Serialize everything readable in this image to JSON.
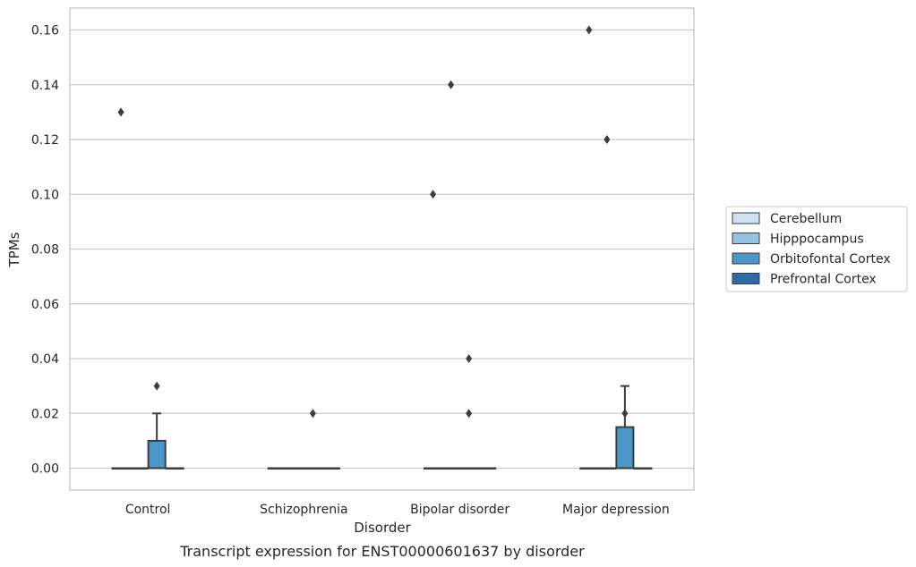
{
  "chart_data": {
    "type": "box",
    "title": "",
    "caption": "Transcript expression for ENST00000601637 by disorder",
    "xlabel": "Disorder",
    "ylabel": "TPMs",
    "ylim": [
      -0.008,
      0.168
    ],
    "yticks": [
      0.0,
      0.02,
      0.04,
      0.06,
      0.08,
      0.1,
      0.12,
      0.14,
      0.16
    ],
    "ytick_labels": [
      "0.00",
      "0.02",
      "0.04",
      "0.06",
      "0.08",
      "0.10",
      "0.12",
      "0.14",
      "0.16"
    ],
    "grid": "horizontal",
    "legend_placement": "right",
    "categories": [
      "Control",
      "Schizophrenia",
      "Bipolar disorder",
      "Major depression"
    ],
    "series": [
      {
        "name": "Cerebellum",
        "color": "#d0e1f2",
        "boxes": [
          {
            "q1": 0,
            "median": 0,
            "q3": 0,
            "whisker_low": 0,
            "whisker_high": 0,
            "outliers": [
              0.13
            ]
          },
          {
            "q1": 0,
            "median": 0,
            "q3": 0,
            "whisker_low": 0,
            "whisker_high": 0,
            "outliers": []
          },
          {
            "q1": 0,
            "median": 0,
            "q3": 0,
            "whisker_low": 0,
            "whisker_high": 0,
            "outliers": [
              0.1
            ]
          },
          {
            "q1": 0,
            "median": 0,
            "q3": 0,
            "whisker_low": 0,
            "whisker_high": 0,
            "outliers": [
              0.16
            ]
          }
        ]
      },
      {
        "name": "Hipppocampus",
        "color": "#94c4df",
        "boxes": [
          {
            "q1": 0,
            "median": 0,
            "q3": 0,
            "whisker_low": 0,
            "whisker_high": 0,
            "outliers": []
          },
          {
            "q1": 0,
            "median": 0,
            "q3": 0,
            "whisker_low": 0,
            "whisker_high": 0,
            "outliers": []
          },
          {
            "q1": 0,
            "median": 0,
            "q3": 0,
            "whisker_low": 0,
            "whisker_high": 0,
            "outliers": [
              0.14
            ]
          },
          {
            "q1": 0,
            "median": 0,
            "q3": 0,
            "whisker_low": 0,
            "whisker_high": 0,
            "outliers": [
              0.12
            ]
          }
        ]
      },
      {
        "name": "Orbitofontal Cortex",
        "color": "#4a98c9",
        "boxes": [
          {
            "q1": 0,
            "median": 0,
            "q3": 0.01,
            "whisker_low": 0,
            "whisker_high": 0.02,
            "outliers": [
              0.03
            ]
          },
          {
            "q1": 0,
            "median": 0,
            "q3": 0,
            "whisker_low": 0,
            "whisker_high": 0,
            "outliers": [
              0.02
            ]
          },
          {
            "q1": 0,
            "median": 0,
            "q3": 0,
            "whisker_low": 0,
            "whisker_high": 0,
            "outliers": [
              0.04,
              0.02
            ]
          },
          {
            "q1": 0,
            "median": 0,
            "q3": 0.015,
            "whisker_low": 0,
            "whisker_high": 0.03,
            "outliers": [
              0.02
            ]
          }
        ]
      },
      {
        "name": "Prefrontal Cortex",
        "color": "#2e6aa8",
        "boxes": [
          {
            "q1": 0,
            "median": 0,
            "q3": 0,
            "whisker_low": 0,
            "whisker_high": 0,
            "outliers": []
          },
          {
            "q1": 0,
            "median": 0,
            "q3": 0,
            "whisker_low": 0,
            "whisker_high": 0,
            "outliers": []
          },
          {
            "q1": 0,
            "median": 0,
            "q3": 0,
            "whisker_low": 0,
            "whisker_high": 0,
            "outliers": []
          },
          {
            "q1": 0,
            "median": 0,
            "q3": 0,
            "whisker_low": 0,
            "whisker_high": 0,
            "outliers": []
          }
        ]
      }
    ]
  }
}
